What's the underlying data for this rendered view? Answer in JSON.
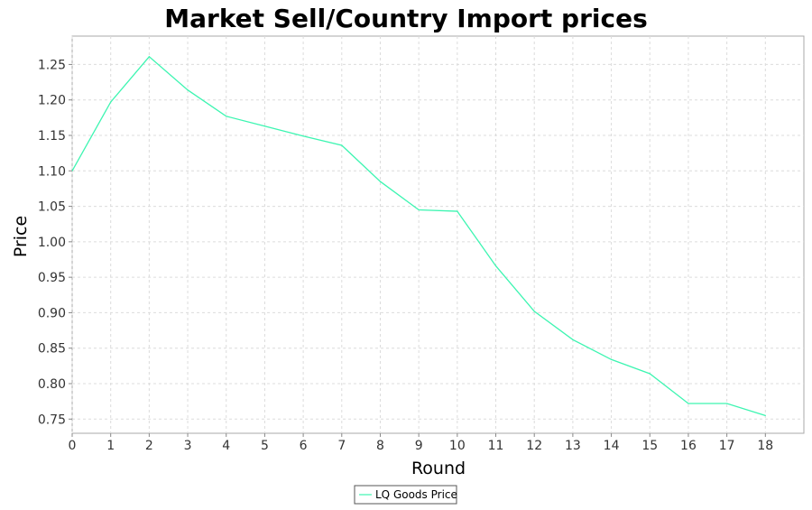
{
  "chart_data": {
    "type": "line",
    "title": "Market Sell/Country Import prices",
    "xlabel": "Round",
    "ylabel": "Price",
    "x": [
      0,
      1,
      2,
      3,
      4,
      5,
      6,
      7,
      8,
      9,
      10,
      11,
      12,
      13,
      14,
      15,
      16,
      17,
      18
    ],
    "xlim": [
      0,
      19
    ],
    "ylim": [
      0.73,
      1.29
    ],
    "x_ticks": [
      "0",
      "1",
      "2",
      "3",
      "4",
      "5",
      "6",
      "7",
      "8",
      "9",
      "10",
      "11",
      "12",
      "13",
      "14",
      "15",
      "16",
      "17",
      "18"
    ],
    "y_ticks": [
      "0.75",
      "0.80",
      "0.85",
      "0.90",
      "0.95",
      "1.00",
      "1.05",
      "1.10",
      "1.15",
      "1.20",
      "1.25"
    ],
    "grid": true,
    "legend_position": "bottom-center",
    "series": [
      {
        "name": "LQ Goods Price",
        "color": "#3df5b1",
        "values": [
          1.1,
          1.197,
          1.261,
          1.214,
          1.177,
          1.163,
          1.149,
          1.136,
          1.085,
          1.045,
          1.043,
          0.966,
          0.902,
          0.862,
          0.834,
          0.814,
          0.772,
          0.772,
          0.755
        ]
      }
    ]
  }
}
